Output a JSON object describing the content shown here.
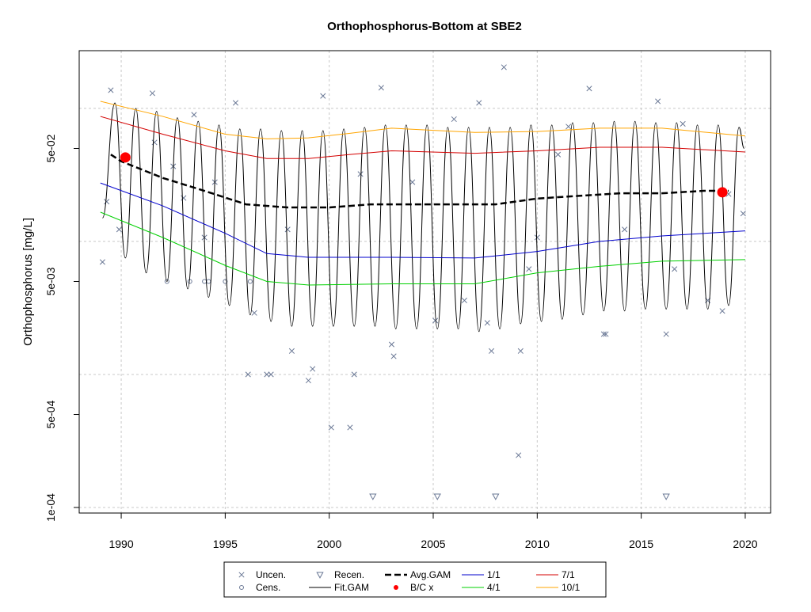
{
  "chart_data": {
    "type": "line",
    "title": "Orthophosphorus-Bottom at SBE2",
    "ylabel": "Orthophosphorus [mg/L]",
    "log_y": true,
    "grid": true,
    "legend": "bottom",
    "xlim": [
      1987.98,
      2021.22
    ],
    "ylim": [
      9.08e-05,
      0.2716
    ],
    "xticks": [
      1990,
      1995,
      2000,
      2005,
      2010,
      2015,
      2020
    ],
    "yticks": [
      {
        "value": 0.0001,
        "label": "1e-04"
      },
      {
        "value": 0.0005,
        "label": "5e-04"
      },
      {
        "value": 0.005,
        "label": "5e-03"
      },
      {
        "value": 0.05,
        "label": "5e-02"
      }
    ],
    "ygrid": [
      0.0001,
      0.001,
      0.01,
      0.1
    ],
    "series": [
      {
        "name": "Uncen.",
        "color": "#6a7895",
        "marker": "x",
        "x": [
          1989.1,
          1989.3,
          1989.5,
          1989.9,
          1991.5,
          1991.6,
          1992.5,
          1993.0,
          1993.5,
          1994.5,
          1995.5,
          1996.1,
          1996.4,
          1997.0,
          1997.2,
          1998.0,
          1998.2,
          1999.0,
          1999.2,
          1999.7,
          2000.1,
          2001.0,
          2001.2,
          2002.5,
          2003.0,
          2003.1,
          2004.0,
          2005.1,
          2006.0,
          2006.5,
          2007.2,
          2007.6,
          2007.8,
          2008.4,
          2009.1,
          2009.2,
          2010.0,
          2011.0,
          2012.5,
          2013.2,
          2013.3,
          2014.2,
          2015.8,
          2016.2,
          2017.0,
          2018.2,
          2018.9,
          2019.2,
          2019.9,
          2001.5,
          1994.0,
          2009.6,
          2011.5,
          2016.6
        ],
        "values": [
          0.007,
          0.0199,
          0.137,
          0.0123,
          0.13,
          0.0555,
          0.0367,
          0.0212,
          0.0896,
          0.0279,
          0.11,
          0.001,
          0.0029,
          0.001,
          0.001,
          0.0123,
          0.0015,
          0.0009,
          0.0011,
          0.124,
          0.000399,
          0.000399,
          0.001,
          0.143,
          0.00168,
          0.00137,
          0.0279,
          0.00254,
          0.083,
          0.0036,
          0.11,
          0.00244,
          0.0015,
          0.204,
          0.000247,
          0.0015,
          0.0107,
          0.045,
          0.141,
          0.00201,
          0.00201,
          0.0123,
          0.113,
          0.00201,
          0.0765,
          0.0036,
          0.003,
          0.0227,
          0.0162,
          0.0321,
          0.0107,
          0.0062,
          0.073,
          0.0062
        ]
      },
      {
        "name": "Cens.",
        "color": "#6a7895",
        "marker": "circle",
        "x": [
          1992.2,
          1993.3,
          1994.0,
          1994.2,
          1995.0,
          1996.2
        ],
        "values": [
          0.005,
          0.005,
          0.005,
          0.005,
          0.005,
          0.005
        ]
      },
      {
        "name": "Recen.",
        "color": "#6a7895",
        "marker": "triangle",
        "x": [
          2002.1,
          2005.2,
          2008.0,
          2016.2
        ],
        "values": [
          0.000121,
          0.000121,
          0.000121,
          0.000121
        ]
      },
      {
        "name": "Fit.GAM",
        "color": "#000000",
        "line_style": "solid",
        "line_width": 1,
        "smooth": true,
        "x": [
          1989.1,
          1989.7,
          1990.2,
          1990.7,
          1991.2,
          1991.7,
          1992.2,
          1992.7,
          1993.2,
          1993.7,
          1994.2,
          1994.7,
          1995.2,
          1995.7,
          1996.2,
          1996.7,
          1997.2,
          1997.7,
          1998.2,
          1998.7,
          1999.2,
          1999.7,
          2000.2,
          2000.7,
          2001.2,
          2001.7,
          2002.2,
          2002.7,
          2003.2,
          2003.7,
          2004.2,
          2004.7,
          2005.2,
          2005.7,
          2006.2,
          2006.7,
          2007.2,
          2007.7,
          2008.2,
          2008.7,
          2009.2,
          2009.7,
          2010.2,
          2010.7,
          2011.2,
          2011.7,
          2012.2,
          2012.7,
          2013.2,
          2013.7,
          2014.2,
          2014.7,
          2015.2,
          2015.7,
          2016.2,
          2016.7,
          2017.2,
          2017.7,
          2018.2,
          2018.7,
          2019.2,
          2019.7,
          2019.95
        ],
        "values": [
          0.015,
          0.11,
          0.0075,
          0.1,
          0.0058,
          0.095,
          0.005,
          0.085,
          0.0044,
          0.08,
          0.0038,
          0.075,
          0.0033,
          0.07,
          0.0028,
          0.07,
          0.0025,
          0.068,
          0.0023,
          0.068,
          0.0023,
          0.068,
          0.0023,
          0.07,
          0.0023,
          0.072,
          0.0023,
          0.075,
          0.0022,
          0.075,
          0.0022,
          0.075,
          0.0022,
          0.072,
          0.0022,
          0.072,
          0.0021,
          0.072,
          0.0022,
          0.072,
          0.0024,
          0.075,
          0.0025,
          0.075,
          0.0026,
          0.078,
          0.0028,
          0.078,
          0.003,
          0.08,
          0.003,
          0.08,
          0.0031,
          0.078,
          0.0031,
          0.078,
          0.0031,
          0.075,
          0.0031,
          0.075,
          0.0033,
          0.072,
          0.05
        ]
      },
      {
        "name": "Avg.GAM",
        "color": "#000000",
        "line_style": "dashed",
        "line_width": 2.5,
        "x": [
          1989.5,
          1990,
          1992,
          1994,
          1996,
          1998,
          2000,
          2002,
          2004,
          2006,
          2008,
          2010,
          2012,
          2014,
          2016,
          2018,
          2019.2
        ],
        "values": [
          0.045,
          0.04,
          0.03,
          0.024,
          0.019,
          0.018,
          0.018,
          0.019,
          0.019,
          0.019,
          0.019,
          0.021,
          0.022,
          0.023,
          0.023,
          0.024,
          0.024
        ]
      },
      {
        "name": "B/C x",
        "color": "#ff0000",
        "marker": "dot",
        "x": [
          1990.2,
          2018.9
        ],
        "values": [
          0.0428,
          0.0234
        ]
      },
      {
        "name": "1/1",
        "color": "#0000cd",
        "line_style": "solid",
        "line_width": 1,
        "x": [
          1989,
          1992,
          1995,
          1997,
          1999,
          2003,
          2007,
          2010,
          2013,
          2016,
          2020
        ],
        "values": [
          0.0275,
          0.0185,
          0.0115,
          0.0081,
          0.0076,
          0.0076,
          0.0075,
          0.0084,
          0.01,
          0.011,
          0.012
        ]
      },
      {
        "name": "4/1",
        "color": "#00d000",
        "line_style": "solid",
        "line_width": 1,
        "x": [
          1989,
          1992,
          1995,
          1997,
          1999,
          2003,
          2007,
          2010,
          2013,
          2016,
          2020
        ],
        "values": [
          0.0166,
          0.0107,
          0.0066,
          0.005,
          0.0047,
          0.0048,
          0.0048,
          0.0058,
          0.0065,
          0.0071,
          0.0073
        ]
      },
      {
        "name": "7/1",
        "color": "#d40000",
        "line_style": "solid",
        "line_width": 1,
        "x": [
          1989,
          1992,
          1995,
          1997,
          1999,
          2001,
          2003,
          2007,
          2010,
          2013,
          2016,
          2020
        ],
        "values": [
          0.087,
          0.064,
          0.048,
          0.042,
          0.042,
          0.045,
          0.048,
          0.046,
          0.048,
          0.051,
          0.051,
          0.047
        ]
      },
      {
        "name": "10/1",
        "color": "#ffa500",
        "line_style": "solid",
        "line_width": 1,
        "x": [
          1989,
          1992,
          1995,
          1997,
          1999,
          2001,
          2003,
          2007,
          2010,
          2013,
          2016,
          2020
        ],
        "values": [
          0.113,
          0.087,
          0.064,
          0.059,
          0.06,
          0.065,
          0.071,
          0.066,
          0.067,
          0.071,
          0.071,
          0.062
        ]
      }
    ]
  }
}
